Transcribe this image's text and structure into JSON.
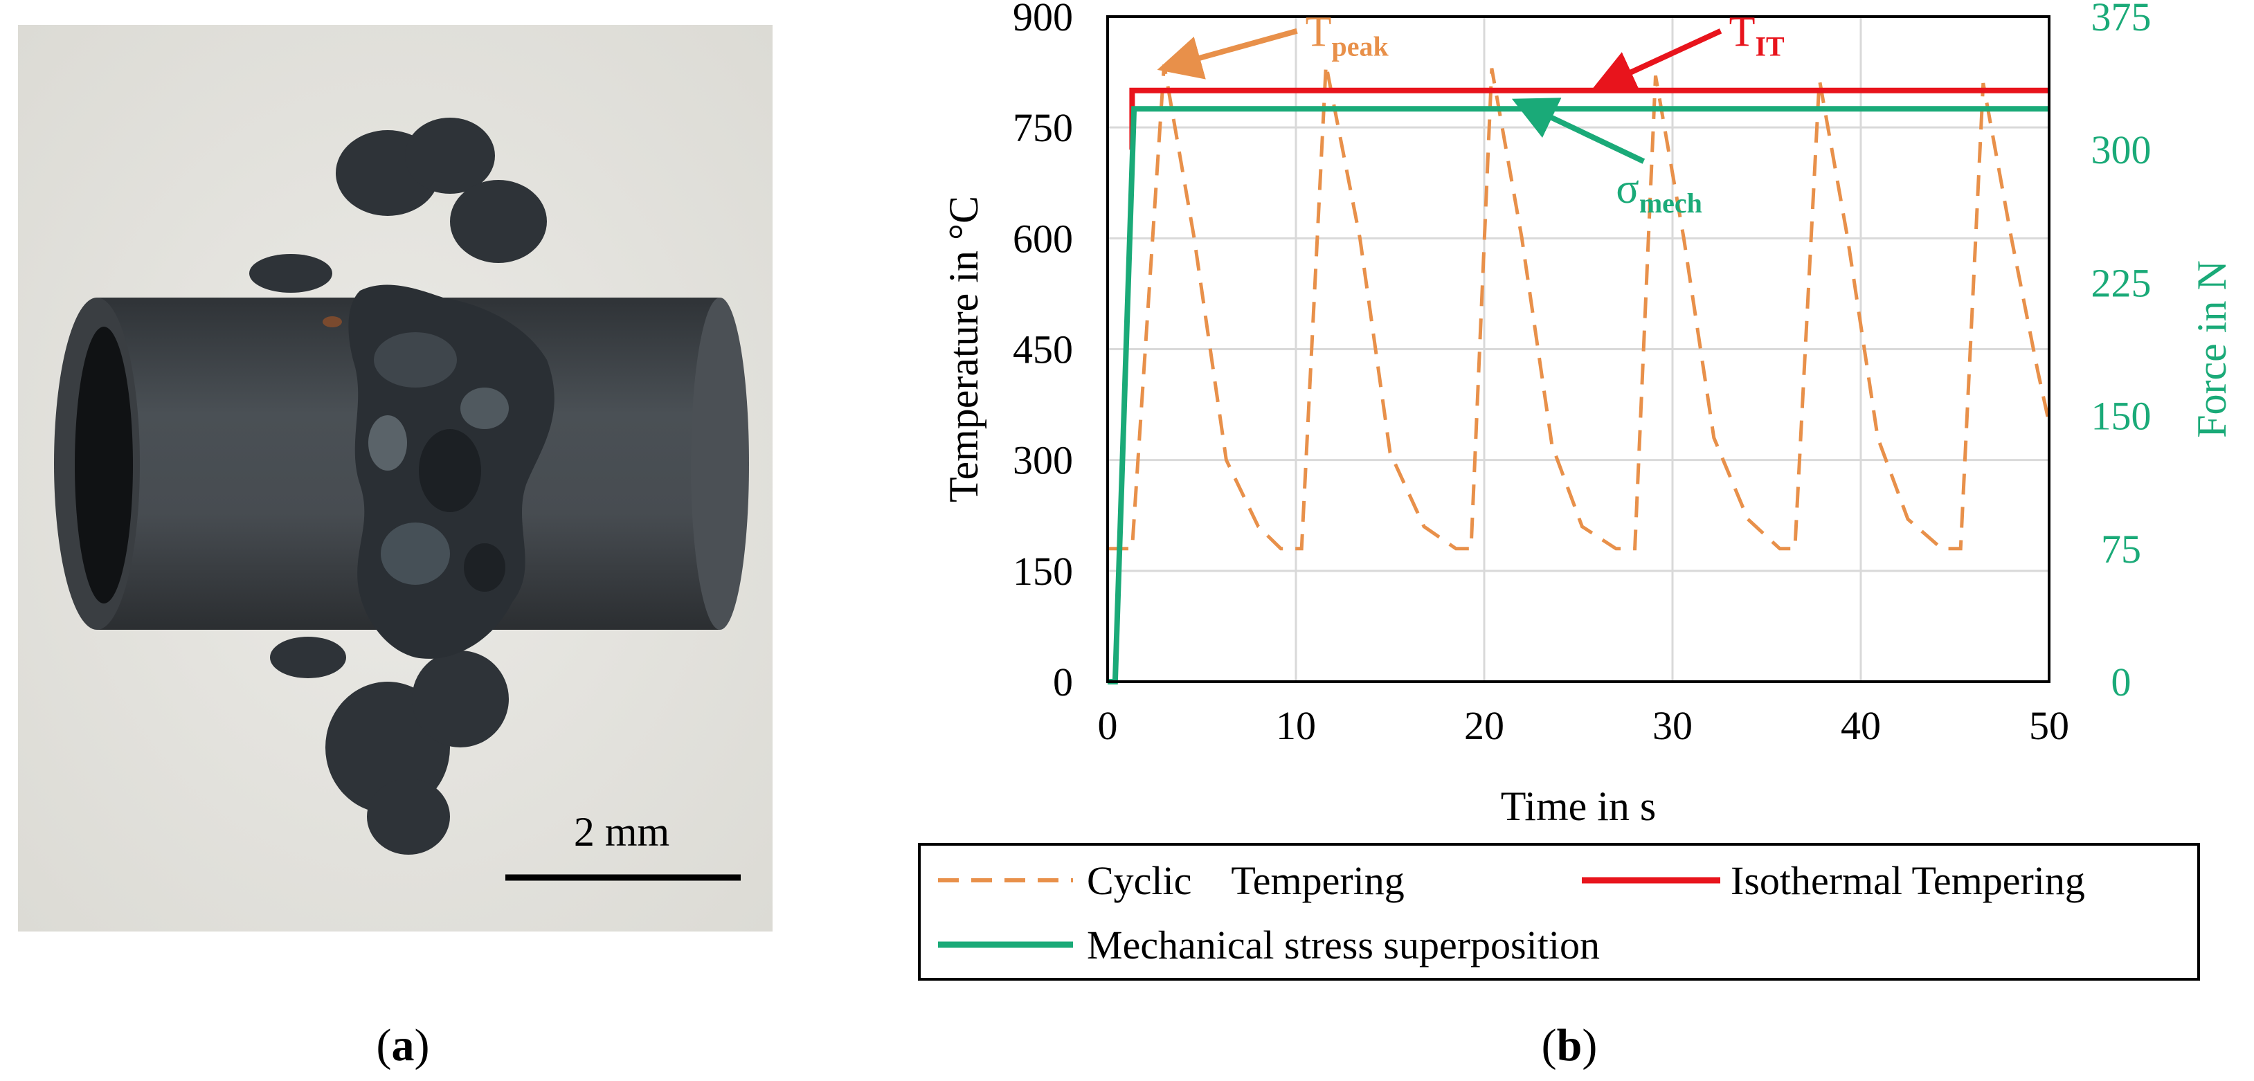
{
  "panel_a": {
    "label_open": "(",
    "label_letter": "a",
    "label_close": ")",
    "scale_bar_text": "2 mm",
    "photo_background": "#e6e5e0",
    "tube_color": "#3e4246",
    "crust_color": "#2c3136"
  },
  "panel_b": {
    "label_open": "(",
    "label_letter": "b",
    "label_close": ")"
  },
  "colors": {
    "cyclic": "#e8904a",
    "isothermal": "#e8141c",
    "mechanical": "#1aaa78",
    "grid": "#d9d9d9",
    "axis": "#000000"
  },
  "chart_data": {
    "type": "line",
    "title": "",
    "xlabel": "Time in s",
    "ylabel": "Temperature in °C",
    "y2label": "Force in N",
    "xlim": [
      0,
      50
    ],
    "ylim": [
      0,
      900
    ],
    "y2lim": [
      0,
      375
    ],
    "xticks": [
      0,
      10,
      20,
      30,
      40,
      50
    ],
    "yticks": [
      0,
      150,
      300,
      450,
      600,
      750,
      900
    ],
    "y2ticks": [
      0,
      75,
      150,
      225,
      300,
      375
    ],
    "grid": true,
    "legend_position": "bottom",
    "series": [
      {
        "name": "Cyclic    Tempering",
        "axis": "left",
        "style": "dashed",
        "color": "#e8904a",
        "x": [
          0,
          1.3,
          3.0,
          4.6,
          6.3,
          8.0,
          9.2,
          10.3,
          11.6,
          13.4,
          15.0,
          16.8,
          18.5,
          19.3,
          20.4,
          22.0,
          23.6,
          25.2,
          27.0,
          28.0,
          29.1,
          30.6,
          32.2,
          34.0,
          35.7,
          36.5,
          37.8,
          39.3,
          40.9,
          42.5,
          44.3,
          45.3,
          46.5,
          48.0,
          49.4,
          50.0
        ],
        "y": [
          180,
          180,
          835,
          600,
          300,
          210,
          180,
          180,
          835,
          600,
          310,
          210,
          180,
          180,
          830,
          600,
          320,
          210,
          180,
          180,
          820,
          600,
          330,
          220,
          180,
          180,
          815,
          600,
          330,
          220,
          180,
          180,
          810,
          600,
          420,
          350
        ]
      },
      {
        "name": "Isothermal Tempering",
        "axis": "left",
        "style": "solid",
        "color": "#e8141c",
        "x": [
          1.3,
          1.3,
          50.0
        ],
        "y": [
          720,
          800,
          800
        ]
      },
      {
        "name": "Mechanical stress superposition",
        "axis": "right",
        "style": "solid",
        "color": "#1aaa78",
        "x": [
          0,
          0.4,
          1.4,
          50.0
        ],
        "y": [
          0,
          0,
          323,
          323
        ]
      }
    ],
    "annotations": [
      {
        "text_main": "T",
        "text_sub": "peak",
        "color": "#e8904a",
        "x": 10.5,
        "y": 860,
        "axis": "left",
        "arrow_to_x": 3.2,
        "arrow_to_y": 832
      },
      {
        "text_main": "T",
        "text_sub": "IT",
        "color": "#e8141c",
        "x": 33.0,
        "y": 860,
        "axis": "left",
        "arrow_to_x": 26.2,
        "arrow_to_y": 806
      },
      {
        "text_main": "σ",
        "text_sub": "mech",
        "color": "#1aaa78",
        "x": 27.0,
        "y": 270,
        "axis": "right",
        "arrow_to_x": 22.0,
        "arrow_to_y": 326
      }
    ]
  }
}
